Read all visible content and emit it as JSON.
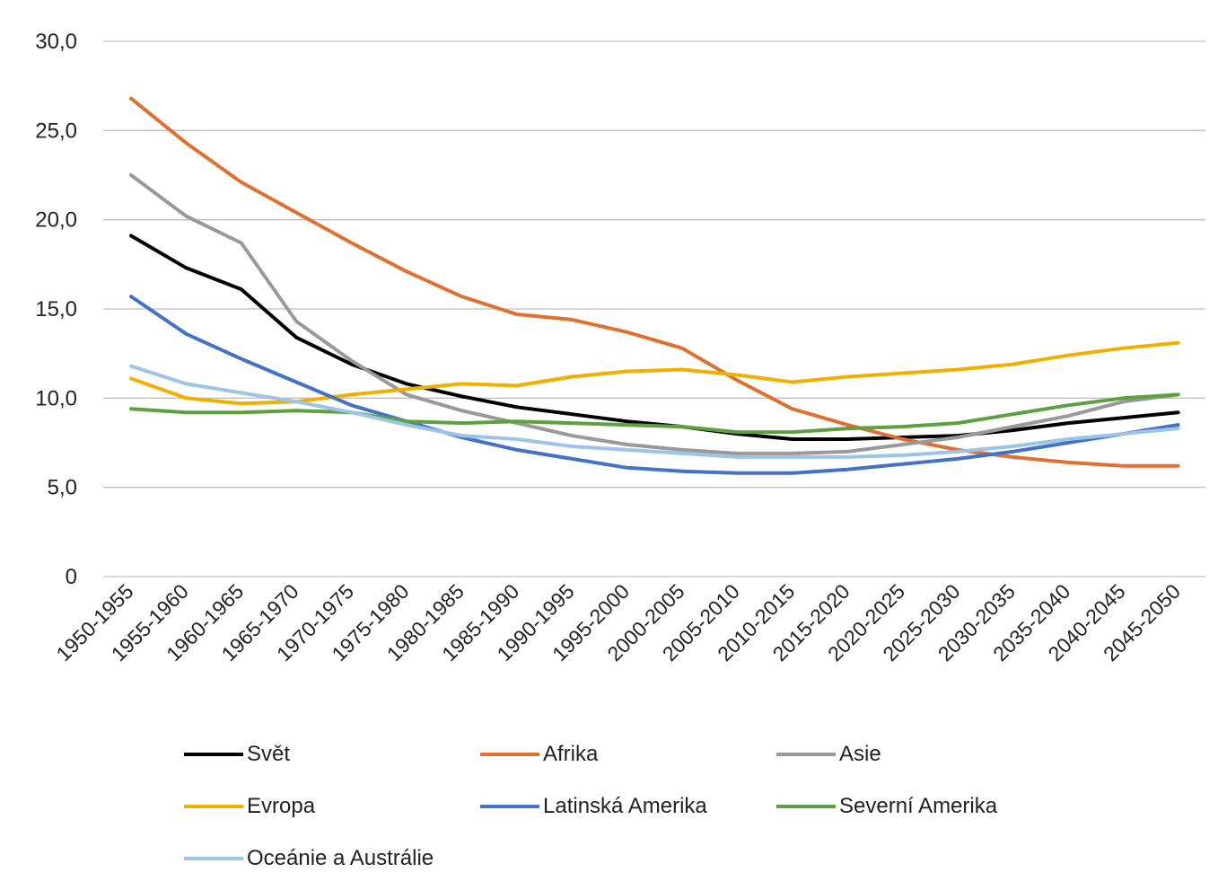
{
  "chart_data": {
    "type": "line",
    "title": "",
    "xlabel": "",
    "ylabel": "",
    "ylim": [
      0,
      30
    ],
    "yticks": [
      "0",
      "5,0",
      "10,0",
      "15,0",
      "20,0",
      "25,0",
      "30,0"
    ],
    "grid": true,
    "legend_position": "bottom",
    "categories": [
      "1950-1955",
      "1955-1960",
      "1960-1965",
      "1965-1970",
      "1970-1975",
      "1975-1980",
      "1980-1985",
      "1985-1990",
      "1990-1995",
      "1995-2000",
      "2000-2005",
      "2005-2010",
      "2010-2015",
      "2015-2020",
      "2020-2025",
      "2025-2030",
      "2030-2035",
      "2035-2040",
      "2040-2045",
      "2045-2050"
    ],
    "series": [
      {
        "name": "Svět",
        "color": "#000000",
        "values": [
          19.1,
          17.3,
          16.1,
          13.4,
          11.9,
          10.8,
          10.1,
          9.5,
          9.1,
          8.7,
          8.4,
          8.0,
          7.7,
          7.7,
          7.8,
          7.9,
          8.2,
          8.6,
          8.9,
          9.2
        ]
      },
      {
        "name": "Afrika",
        "color": "#e07030",
        "values": [
          26.8,
          24.3,
          22.1,
          20.4,
          18.7,
          17.1,
          15.7,
          14.7,
          14.4,
          13.7,
          12.8,
          11.0,
          9.4,
          8.5,
          7.7,
          7.1,
          6.7,
          6.4,
          6.2,
          6.2
        ]
      },
      {
        "name": "Asie",
        "color": "#999999",
        "values": [
          22.5,
          20.2,
          18.7,
          14.3,
          12.1,
          10.2,
          9.3,
          8.6,
          7.9,
          7.4,
          7.1,
          6.9,
          6.9,
          7.0,
          7.4,
          7.8,
          8.4,
          9.0,
          9.8,
          10.2
        ]
      },
      {
        "name": "Evropa",
        "color": "#f0b000",
        "values": [
          11.1,
          10.0,
          9.7,
          9.8,
          10.2,
          10.5,
          10.8,
          10.7,
          11.2,
          11.5,
          11.6,
          11.3,
          10.9,
          11.2,
          11.4,
          11.6,
          11.9,
          12.4,
          12.8,
          13.1
        ]
      },
      {
        "name": "Latinská Amerika",
        "color": "#4472c4",
        "values": [
          15.7,
          13.6,
          12.2,
          10.9,
          9.6,
          8.7,
          7.8,
          7.1,
          6.6,
          6.1,
          5.9,
          5.8,
          5.8,
          6.0,
          6.3,
          6.6,
          7.0,
          7.5,
          8.0,
          8.5
        ]
      },
      {
        "name": "Severní Amerika",
        "color": "#5ea040",
        "values": [
          9.4,
          9.2,
          9.2,
          9.3,
          9.2,
          8.7,
          8.6,
          8.7,
          8.6,
          8.5,
          8.4,
          8.1,
          8.1,
          8.3,
          8.4,
          8.6,
          9.1,
          9.6,
          10.0,
          10.2
        ]
      },
      {
        "name": "Oceánie a Austrálie",
        "color": "#9dc3e6",
        "values": [
          11.8,
          10.8,
          10.3,
          9.8,
          9.2,
          8.5,
          7.9,
          7.7,
          7.3,
          7.1,
          6.9,
          6.7,
          6.7,
          6.7,
          6.8,
          7.0,
          7.3,
          7.7,
          8.0,
          8.3
        ]
      }
    ]
  }
}
